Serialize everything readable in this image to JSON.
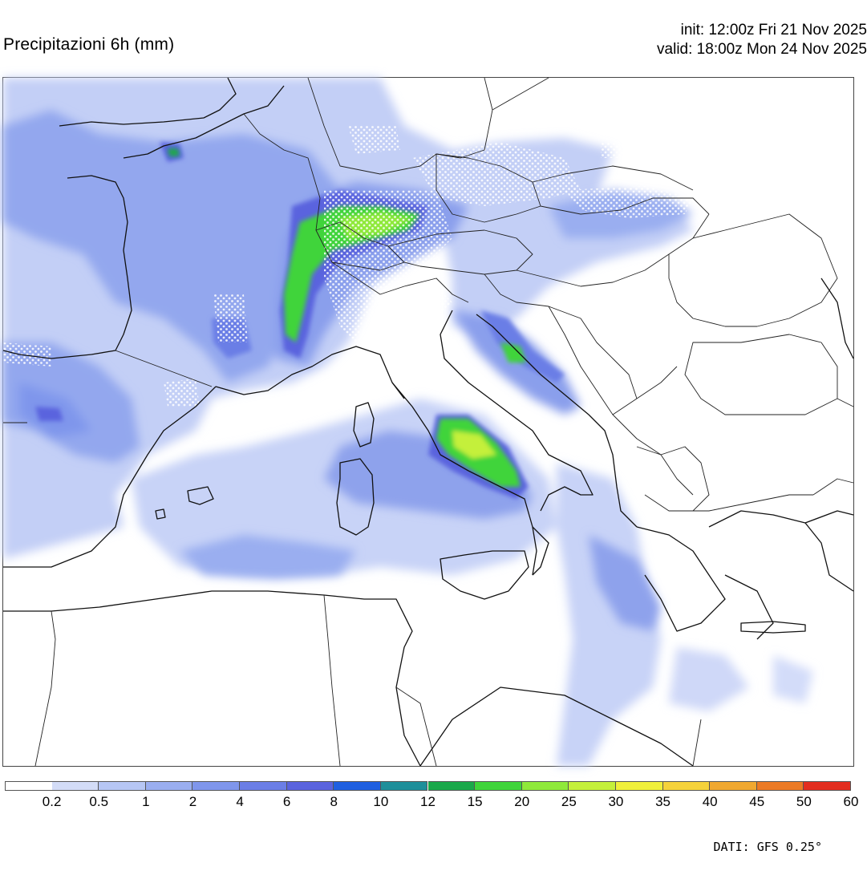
{
  "header": {
    "title": "Precipitazioni 6h (mm)",
    "init": "init: 12:00z Fri 21 Nov 2025",
    "valid": "valid: 18:00z Mon 24 Nov 2025"
  },
  "map": {
    "variable": "6h precipitation",
    "units": "mm",
    "snow_marker_color": "#ffffff",
    "coastline_color": "#111111"
  },
  "legend": {
    "levels": [
      "0.2",
      "0.5",
      "1",
      "2",
      "4",
      "6",
      "8",
      "10",
      "12",
      "15",
      "20",
      "25",
      "30",
      "35",
      "40",
      "45",
      "50",
      "60"
    ],
    "colors": [
      "#ffffff",
      "#d3dcf7",
      "#b6c6f4",
      "#9aaef0",
      "#7f96ec",
      "#6b7ee6",
      "#5a63de",
      "#1f5fe0",
      "#1e8f9a",
      "#1aa84a",
      "#3fd43a",
      "#8fe93a",
      "#c4f03a",
      "#f0f03a",
      "#f5d23a",
      "#f0a830",
      "#ec7a24",
      "#e32d1f"
    ]
  },
  "footer": {
    "source": "DATI: GFS 0.25°"
  }
}
